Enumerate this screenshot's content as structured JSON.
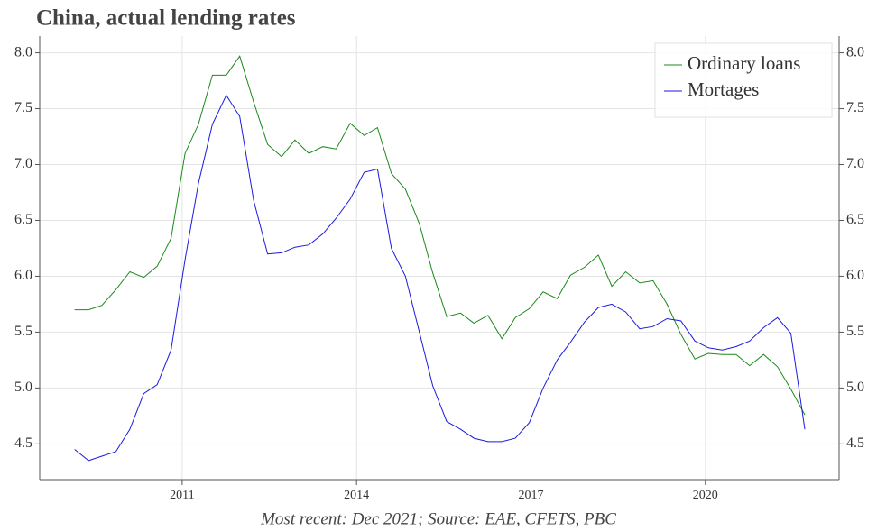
{
  "chart_data": {
    "type": "line",
    "title": "China, actual lending rates",
    "footnote": "Most recent: Dec 2021; Source: EAE, CFETS, PBC",
    "x": [
      2009.15,
      2009.39,
      2009.62,
      2009.86,
      2010.1,
      2010.34,
      2010.57,
      2010.81,
      2011.05,
      2011.28,
      2011.52,
      2011.76,
      2011.99,
      2012.23,
      2012.47,
      2012.71,
      2012.94,
      2013.18,
      2013.42,
      2013.65,
      2013.89,
      2014.13,
      2014.36,
      2014.6,
      2014.84,
      2015.08,
      2015.31,
      2015.55,
      2015.79,
      2016.02,
      2016.26,
      2016.5,
      2016.73,
      2016.97,
      2017.21,
      2017.45,
      2017.68,
      2017.92,
      2018.16,
      2018.39,
      2018.63,
      2018.87,
      2019.1,
      2019.34,
      2019.58,
      2019.82,
      2020.05,
      2020.29,
      2020.53,
      2020.76,
      2021.0,
      2021.24,
      2021.47,
      2021.71
    ],
    "series": [
      {
        "name": "Ordinary loans",
        "color": "#1a8a1a",
        "values": [
          5.7,
          5.7,
          5.74,
          5.88,
          6.04,
          5.99,
          6.09,
          6.34,
          7.1,
          7.36,
          7.8,
          7.8,
          7.97,
          7.56,
          7.18,
          7.07,
          7.22,
          7.1,
          7.16,
          7.14,
          7.37,
          7.26,
          7.33,
          6.92,
          6.78,
          6.47,
          6.03,
          5.64,
          5.67,
          5.58,
          5.65,
          5.44,
          5.63,
          5.71,
          5.86,
          5.8,
          6.01,
          6.08,
          6.19,
          5.91,
          6.04,
          5.94,
          5.96,
          5.75,
          5.48,
          5.26,
          5.31,
          5.3,
          5.3,
          5.2,
          5.3,
          5.19,
          4.99,
          4.76
        ]
      },
      {
        "name": "Mortages",
        "color": "#1a1ae0",
        "values": [
          4.45,
          4.35,
          4.39,
          4.43,
          4.63,
          4.95,
          5.03,
          5.34,
          6.15,
          6.83,
          7.36,
          7.62,
          7.43,
          6.68,
          6.2,
          6.21,
          6.26,
          6.28,
          6.38,
          6.52,
          6.69,
          6.93,
          6.96,
          6.25,
          6.0,
          5.5,
          5.02,
          4.7,
          4.63,
          4.55,
          4.52,
          4.52,
          4.55,
          4.69,
          5.0,
          5.25,
          5.41,
          5.59,
          5.72,
          5.75,
          5.68,
          5.53,
          5.55,
          5.62,
          5.6,
          5.42,
          5.36,
          5.34,
          5.37,
          5.42,
          5.54,
          5.63,
          5.49,
          4.63
        ]
      }
    ],
    "xlim": [
      2008.55,
      2022.3
    ],
    "xticks": [
      2011,
      2014,
      2017,
      2020
    ],
    "ylim": [
      4.18,
      8.15
    ],
    "yticks": [
      4.5,
      {
        "value": 5,
        "label": "5.0"
      },
      5.5,
      {
        "value": 6,
        "label": "6.0"
      },
      6.5,
      {
        "value": 7,
        "label": "7.0"
      },
      7.5,
      {
        "value": 8,
        "label": "8.0"
      }
    ],
    "grid": true,
    "legend": "upper right"
  }
}
